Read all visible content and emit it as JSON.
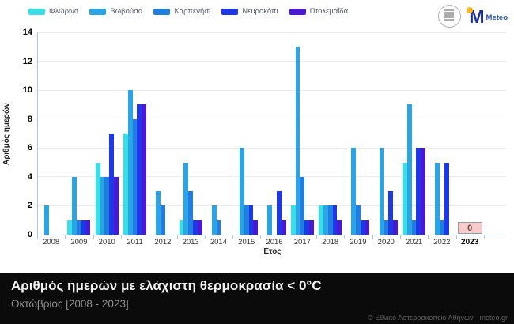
{
  "header": {
    "meteo_logo_text": "Meteo"
  },
  "chart_data": {
    "type": "bar",
    "categories": [
      "2008",
      "2009",
      "2010",
      "2011",
      "2012",
      "2013",
      "2014",
      "2015",
      "2016",
      "2017",
      "2018",
      "2019",
      "2020",
      "2021",
      "2022",
      "2023"
    ],
    "series": [
      {
        "name": "Φλώρινα",
        "color": "#38DFE8",
        "values": [
          0,
          1,
          5,
          7,
          0,
          1,
          0,
          0,
          0,
          2,
          2,
          0,
          0,
          5,
          0,
          0
        ]
      },
      {
        "name": "Βωβούσα",
        "color": "#29A4E6",
        "values": [
          2,
          4,
          4,
          10,
          3,
          5,
          2,
          6,
          2,
          13,
          2,
          6,
          6,
          9,
          5,
          0
        ]
      },
      {
        "name": "Καρπενήσι",
        "color": "#1F7EE0",
        "values": [
          0,
          1,
          4,
          8,
          2,
          3,
          1,
          2,
          0,
          4,
          2,
          2,
          1,
          1,
          1,
          0
        ]
      },
      {
        "name": "Νευροκόπι",
        "color": "#1C38E8",
        "values": [
          0,
          1,
          7,
          9,
          0,
          1,
          0,
          2,
          3,
          1,
          2,
          1,
          3,
          6,
          5,
          0
        ]
      },
      {
        "name": "Πτολεμαΐδα",
        "color": "#4A19D6",
        "values": [
          0,
          1,
          4,
          9,
          0,
          1,
          0,
          1,
          1,
          1,
          1,
          1,
          1,
          6,
          0,
          0
        ]
      }
    ],
    "xlabel": "Έτος",
    "ylabel": "Αριθμός ημερών",
    "yticks": [
      0,
      2,
      4,
      6,
      8,
      10,
      12,
      14
    ],
    "ylim": [
      0,
      14
    ],
    "grid": true,
    "legend_position": "top-left",
    "annotation": {
      "category": "2023",
      "label": "0"
    }
  },
  "footer": {
    "title": "Αριθμός ημερών με ελάχιστη θερμοκρασία < 0°C",
    "subtitle": "Οκτώβριος [2008 - 2023]",
    "credit": "© Εθνικό Αστεροσκοπείο Αθηνών - meteo.gr"
  }
}
